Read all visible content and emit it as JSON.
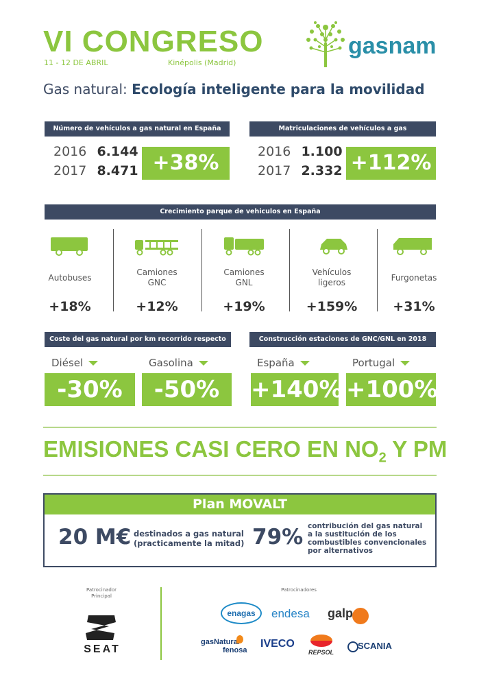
{
  "header": {
    "title": "VI CONGRESO",
    "dates": "11 - 12 DE ABRIL",
    "venue": "Kinépolis (Madrid)",
    "brand": "gasnam",
    "subtitle_prefix": "Gas natural:",
    "subtitle_bold": "Ecología inteligente para la movilidad"
  },
  "vehicles_spain": {
    "heading": "Número de vehículos a gas natural en España",
    "rows": [
      {
        "year": "2016",
        "value": "6.144"
      },
      {
        "year": "2017",
        "value": "8.471"
      }
    ],
    "growth": "+38%"
  },
  "registrations": {
    "heading": "Matriculaciones de vehículos a gas",
    "rows": [
      {
        "year": "2016",
        "value": "1.100"
      },
      {
        "year": "2017",
        "value": "2.332"
      }
    ],
    "growth": "+112%"
  },
  "fleet_growth": {
    "heading": "Crecimiento parque de vehiculos en España",
    "items": [
      {
        "icon": "bus-icon",
        "label1": "Autobuses",
        "label2": "",
        "pct": "+18%"
      },
      {
        "icon": "truck-gnc-icon",
        "label1": "Camiones",
        "label2": "GNC",
        "pct": "+12%"
      },
      {
        "icon": "truck-gnl-icon",
        "label1": "Camiones",
        "label2": "GNL",
        "pct": "+19%"
      },
      {
        "icon": "car-icon",
        "label1": "Vehículos",
        "label2": "ligeros",
        "pct": "+159%"
      },
      {
        "icon": "van-icon",
        "label1": "Furgonetas",
        "label2": "",
        "pct": "+31%"
      }
    ]
  },
  "cost": {
    "heading": "Coste del gas natural por km recorrido respecto a...",
    "items": [
      {
        "label": "Diésel",
        "value": "-30%"
      },
      {
        "label": "Gasolina",
        "value": "-50%"
      }
    ]
  },
  "stations": {
    "heading": "Construcción estaciones de GNC/GNL en 2018",
    "items": [
      {
        "label": "España",
        "value": "+140%"
      },
      {
        "label": "Portugal",
        "value": "+100%"
      }
    ]
  },
  "emissions": {
    "text_a": "EMISIONES CASI CERO EN NO",
    "sub": "2",
    "text_b": " Y PM"
  },
  "movalt": {
    "title": "Plan MOVALT",
    "amount": "20 M€",
    "amount_desc1": "destinados a gas natural",
    "amount_desc2": "(practicamente la mitad)",
    "pct": "79%",
    "pct_desc1": "contribución del gas natural",
    "pct_desc2": "a la sustitución de los",
    "pct_desc3": "combustibles convencionales",
    "pct_desc4": "por alternativos"
  },
  "sponsors": {
    "main_label1": "Patrocinador",
    "main_label2": "Principal",
    "main_name": "SEAT",
    "label": "Patrocinadores",
    "logos": [
      "enagas",
      "endesa",
      "galp",
      "gasNatural",
      "fenosa",
      "IVECO",
      "REPSOL",
      "SCANIA"
    ]
  },
  "colors": {
    "green": "#8cc63f",
    "navy": "#3d4a63"
  }
}
